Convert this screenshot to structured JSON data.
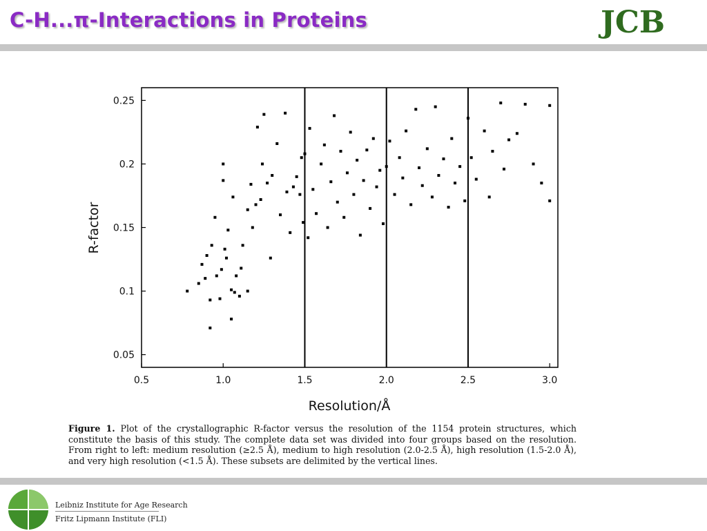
{
  "slide": {
    "title": "C-H...π-Interactions in Proteins",
    "logo_text": "JCB"
  },
  "chart_data": {
    "type": "scatter",
    "xlabel": "Resolution/Å",
    "ylabel": "R-factor",
    "xlim": [
      0.5,
      3.05
    ],
    "ylim": [
      0.04,
      0.26
    ],
    "xticks": [
      "0.5",
      "1.0",
      "1.5",
      "2.0",
      "2.5",
      "3.0"
    ],
    "yticks": [
      "0.05",
      "0.1",
      "0.15",
      "0.2",
      "0.25"
    ],
    "vertical_lines": [
      1.5,
      2.0,
      2.5
    ],
    "marker_color": "#000000",
    "x": [
      0.78,
      0.85,
      0.87,
      0.89,
      0.9,
      0.92,
      0.92,
      0.93,
      0.95,
      0.96,
      0.98,
      0.99,
      1.0,
      1.0,
      1.01,
      1.02,
      1.03,
      1.05,
      1.05,
      1.06,
      1.07,
      1.08,
      1.1,
      1.11,
      1.12,
      1.15,
      1.15,
      1.17,
      1.18,
      1.2,
      1.21,
      1.23,
      1.24,
      1.25,
      1.27,
      1.29,
      1.3,
      1.33,
      1.35,
      1.38,
      1.39,
      1.41,
      1.43,
      1.45,
      1.47,
      1.48,
      1.49,
      1.5,
      1.52,
      1.53,
      1.55,
      1.57,
      1.6,
      1.62,
      1.64,
      1.66,
      1.68,
      1.7,
      1.72,
      1.74,
      1.76,
      1.78,
      1.8,
      1.82,
      1.84,
      1.86,
      1.88,
      1.9,
      1.92,
      1.94,
      1.96,
      1.98,
      2.0,
      2.02,
      2.05,
      2.08,
      2.1,
      2.12,
      2.15,
      2.18,
      2.2,
      2.22,
      2.25,
      2.28,
      2.3,
      2.32,
      2.35,
      2.38,
      2.4,
      2.42,
      2.45,
      2.48,
      2.5,
      2.52,
      2.55,
      2.6,
      2.63,
      2.65,
      2.7,
      2.72,
      2.75,
      2.8,
      2.85,
      2.9,
      2.95,
      3.0,
      3.0
    ],
    "y": [
      0.1,
      0.106,
      0.121,
      0.11,
      0.128,
      0.071,
      0.093,
      0.136,
      0.158,
      0.112,
      0.094,
      0.117,
      0.2,
      0.187,
      0.133,
      0.126,
      0.148,
      0.078,
      0.101,
      0.174,
      0.099,
      0.112,
      0.096,
      0.118,
      0.136,
      0.1,
      0.164,
      0.184,
      0.15,
      0.168,
      0.229,
      0.172,
      0.2,
      0.239,
      0.185,
      0.126,
      0.191,
      0.216,
      0.16,
      0.24,
      0.178,
      0.146,
      0.182,
      0.19,
      0.176,
      0.205,
      0.154,
      0.208,
      0.142,
      0.228,
      0.18,
      0.161,
      0.2,
      0.215,
      0.15,
      0.186,
      0.238,
      0.17,
      0.21,
      0.158,
      0.193,
      0.225,
      0.176,
      0.203,
      0.144,
      0.187,
      0.211,
      0.165,
      0.22,
      0.182,
      0.195,
      0.153,
      0.198,
      0.218,
      0.176,
      0.205,
      0.189,
      0.226,
      0.168,
      0.243,
      0.197,
      0.183,
      0.212,
      0.174,
      0.245,
      0.191,
      0.204,
      0.166,
      0.22,
      0.185,
      0.198,
      0.171,
      0.236,
      0.205,
      0.188,
      0.226,
      0.174,
      0.21,
      0.248,
      0.196,
      0.219,
      0.224,
      0.247,
      0.2,
      0.185,
      0.246,
      0.171
    ]
  },
  "caption": {
    "label": "Figure 1.",
    "text": " Plot of the crystallographic R-factor versus the resolution of the 1154 protein structures, which constitute the basis of this study. The complete data set was divided into four groups based on the resolution. From right to left: medium resolution (≥2.5 Å), medium to high resolution (2.0-2.5 Å), high resolution (1.5-2.0 Å), and very high resolution (<1.5 Å). These subsets are delimited by the vertical lines."
  },
  "footer": {
    "institute_line1": "Leibniz Institute for Age Research",
    "institute_line2": "Fritz Lipmann Institute (FLI)"
  },
  "colors": {
    "title": "#8a2bc4",
    "logo_green": "#2f6b1f",
    "bars": "#c6c6c6"
  }
}
